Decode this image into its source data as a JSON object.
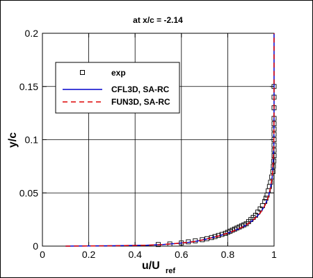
{
  "chart_data": {
    "type": "line",
    "title": "at x/c = -2.14",
    "xlabel_main": "u/U",
    "xlabel_sub": "ref",
    "ylabel": "y/c",
    "xlim": [
      0,
      1
    ],
    "ylim": [
      0,
      0.2
    ],
    "x_ticks": [
      "0",
      "0.2",
      "0.4",
      "0.6",
      "0.8",
      "1"
    ],
    "y_ticks": [
      "0",
      "0.05",
      "0.1",
      "0.15",
      "0.2"
    ],
    "x_tick_values": [
      0,
      0.2,
      0.4,
      0.6,
      0.8,
      1.0
    ],
    "y_tick_values": [
      0,
      0.05,
      0.1,
      0.15,
      0.2
    ],
    "grid": true,
    "legend_position": "upper-left",
    "series": [
      {
        "name": "exp",
        "kind": "markers",
        "marker": "square",
        "color": "#000000",
        "x": [
          0.5,
          0.55,
          0.6,
          0.63,
          0.66,
          0.69,
          0.71,
          0.73,
          0.745,
          0.76,
          0.775,
          0.79,
          0.8,
          0.81,
          0.82,
          0.83,
          0.84,
          0.85,
          0.86,
          0.87,
          0.88,
          0.89,
          0.9,
          0.91,
          0.92,
          0.93,
          0.94,
          0.95,
          0.96,
          0.965,
          0.97,
          0.975,
          0.98,
          0.985,
          0.99,
          0.995,
          0.997,
          0.999,
          1.0,
          1.0,
          1.0,
          1.0,
          1.0,
          1.0,
          1.0,
          1.0,
          1.0,
          1.0,
          1.0
        ],
        "y": [
          0.0015,
          0.002,
          0.003,
          0.004,
          0.005,
          0.006,
          0.007,
          0.008,
          0.009,
          0.01,
          0.011,
          0.012,
          0.013,
          0.014,
          0.015,
          0.016,
          0.017,
          0.018,
          0.019,
          0.02,
          0.021,
          0.023,
          0.025,
          0.027,
          0.029,
          0.032,
          0.035,
          0.038,
          0.042,
          0.045,
          0.048,
          0.052,
          0.056,
          0.06,
          0.065,
          0.07,
          0.075,
          0.08,
          0.085,
          0.09,
          0.095,
          0.1,
          0.105,
          0.11,
          0.115,
          0.12,
          0.13,
          0.14,
          0.15
        ]
      },
      {
        "name": "CFL3D, SA-RC",
        "kind": "line",
        "style": "solid",
        "color": "#0000cc",
        "x": [
          0.1,
          0.3,
          0.45,
          0.52,
          0.58,
          0.63,
          0.67,
          0.7,
          0.73,
          0.76,
          0.79,
          0.82,
          0.85,
          0.88,
          0.91,
          0.94,
          0.96,
          0.975,
          0.985,
          0.992,
          0.996,
          0.999,
          1.0,
          1.0
        ],
        "y": [
          0.0,
          0.0003,
          0.0008,
          0.0015,
          0.0025,
          0.0035,
          0.0048,
          0.0062,
          0.0078,
          0.0095,
          0.0115,
          0.0138,
          0.0165,
          0.0198,
          0.0245,
          0.031,
          0.038,
          0.046,
          0.055,
          0.065,
          0.078,
          0.095,
          0.13,
          0.2
        ]
      },
      {
        "name": "FUN3D, SA-RC",
        "kind": "line",
        "style": "dashed",
        "color": "#dd0000",
        "x": [
          0.1,
          0.3,
          0.45,
          0.52,
          0.58,
          0.63,
          0.67,
          0.7,
          0.73,
          0.76,
          0.79,
          0.82,
          0.85,
          0.88,
          0.91,
          0.94,
          0.96,
          0.975,
          0.985,
          0.992,
          0.996,
          0.999,
          1.0,
          1.0
        ],
        "y": [
          0.0,
          0.0003,
          0.0008,
          0.0015,
          0.0025,
          0.0035,
          0.0048,
          0.0062,
          0.0078,
          0.0095,
          0.0115,
          0.0138,
          0.0165,
          0.0198,
          0.0245,
          0.031,
          0.038,
          0.046,
          0.055,
          0.065,
          0.078,
          0.095,
          0.13,
          0.2
        ]
      }
    ]
  }
}
